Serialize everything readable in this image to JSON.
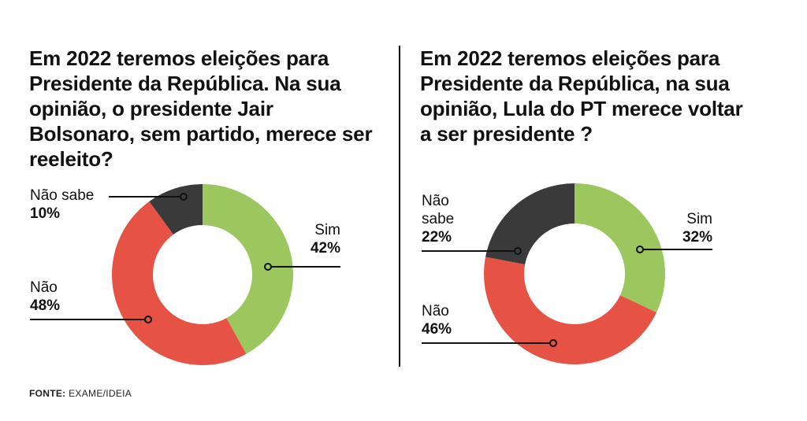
{
  "source": {
    "label": "FONTE:",
    "value": "EXAME/IDEIA"
  },
  "colors": {
    "sim": "#9cc65e",
    "nao": "#e65244",
    "nao_sabe": "#3a3a3a",
    "text": "#111111"
  },
  "chart_data": [
    {
      "type": "pie",
      "variant": "donut",
      "title": "Em 2022 teremos eleições para Presidente da República. Na sua opinião, o presidente Jair Bolsonaro, sem partido, merece ser reeleito?",
      "unit": "%",
      "slices": [
        {
          "key": "sim",
          "label": "Sim",
          "value": 42,
          "value_label": "42%",
          "color": "#9cc65e",
          "label_side": "right"
        },
        {
          "key": "nao",
          "label": "Não",
          "value": 48,
          "value_label": "48%",
          "color": "#e65244",
          "label_side": "left"
        },
        {
          "key": "nao_sabe",
          "label": "Não sabe",
          "value": 10,
          "value_label": "10%",
          "color": "#3a3a3a",
          "label_side": "left"
        }
      ],
      "start": "top",
      "direction": "clockwise"
    },
    {
      "type": "pie",
      "variant": "donut",
      "title": "Em 2022 teremos eleições para Presidente da República, na sua opinião, Lula do PT merece voltar a ser presidente ?",
      "unit": "%",
      "slices": [
        {
          "key": "sim",
          "label": "Sim",
          "value": 32,
          "value_label": "32%",
          "color": "#9cc65e",
          "label_side": "right"
        },
        {
          "key": "nao",
          "label": "Não",
          "value": 46,
          "value_label": "46%",
          "color": "#e65244",
          "label_side": "left"
        },
        {
          "key": "nao_sabe",
          "label": "Não sabe",
          "value": 22,
          "value_label": "22%",
          "color": "#3a3a3a",
          "label_side": "left"
        }
      ],
      "start": "top",
      "direction": "clockwise"
    }
  ]
}
